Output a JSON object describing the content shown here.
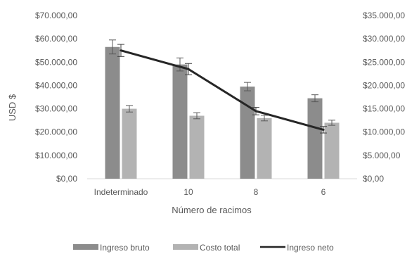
{
  "chart_data": {
    "type": "bar",
    "categories": [
      "Indeterminado",
      "10",
      "8",
      "6"
    ],
    "series": [
      {
        "name": "Ingreso bruto",
        "type": "bar",
        "axis": "left",
        "color": "#8c8c8c",
        "values": [
          56500,
          49000,
          39500,
          34500
        ],
        "error": [
          3000,
          2800,
          1800,
          1500
        ]
      },
      {
        "name": "Costo total",
        "type": "bar",
        "axis": "left",
        "color": "#b3b3b3",
        "values": [
          30000,
          27000,
          26000,
          24000
        ],
        "error": [
          1400,
          1300,
          1200,
          1100
        ]
      },
      {
        "name": "Ingreso neto",
        "type": "line",
        "axis": "right",
        "color": "#262626",
        "values": [
          27500,
          23500,
          14500,
          10500
        ],
        "error": [
          1300,
          1200,
          800,
          700
        ]
      }
    ],
    "xlabel": "Número de racimos",
    "ylabel": "USD $",
    "ylim": [
      0,
      70000
    ],
    "y2lim": [
      0,
      35000
    ],
    "yticks": [
      "$0,00",
      "$10.000,00",
      "$20.000,00",
      "$30.000,00",
      "$40.000,00",
      "$50.000,00",
      "$60.000,00",
      "$70.000,00"
    ],
    "y2ticks": [
      "$0,00",
      "$5.000,00",
      "$10.000,00",
      "$15.000,00",
      "$20.000,00",
      "$25.000,00",
      "$30.000,00",
      "$35.000,00"
    ],
    "grid": false,
    "legend": "bottom"
  }
}
